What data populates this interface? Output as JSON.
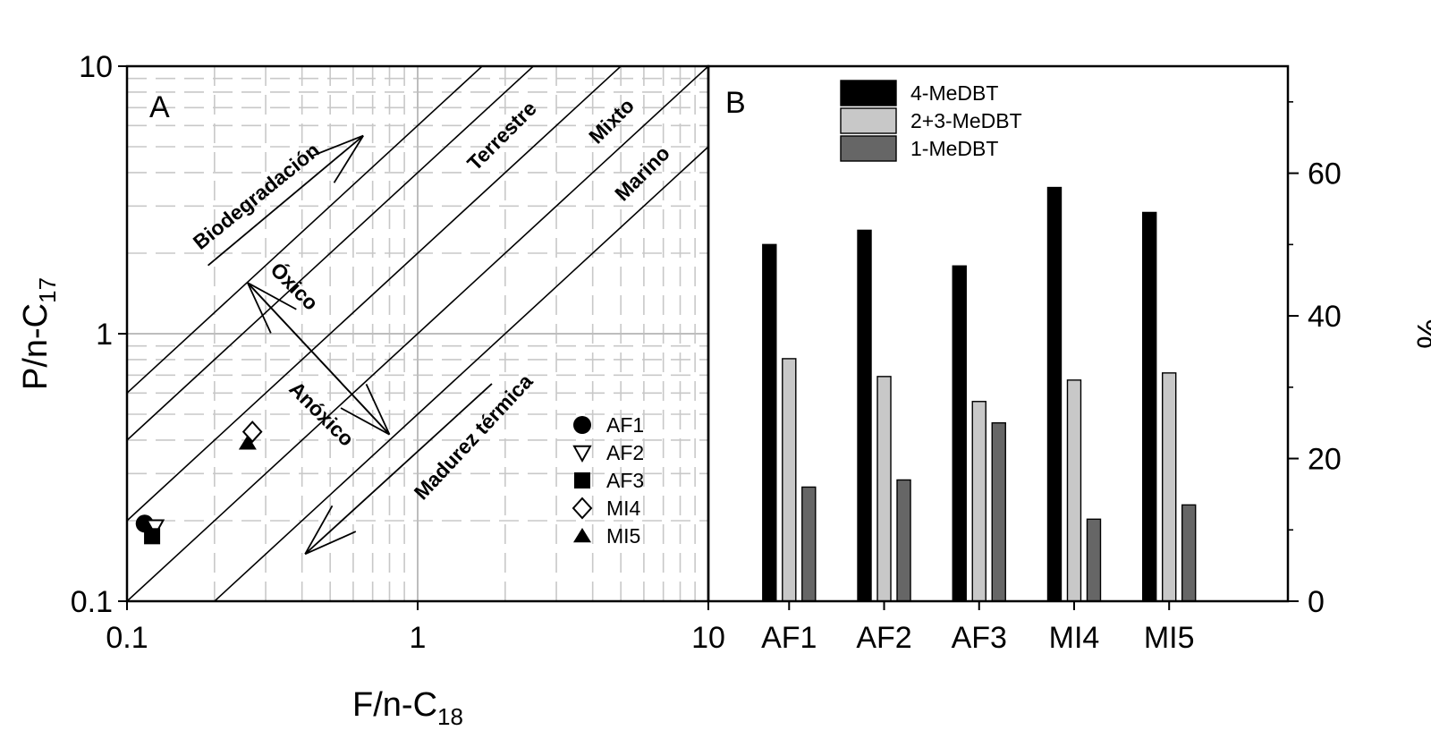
{
  "chart_data": [
    {
      "panel": "A",
      "type": "scatter",
      "xlabel": "F/n-C18",
      "ylabel": "P/n-C17",
      "xscale": "log",
      "yscale": "log",
      "xlim": [
        0.1,
        10
      ],
      "ylim": [
        0.1,
        10
      ],
      "grid": true,
      "legend_position": "bottom-right",
      "x_ticks": [
        "0.1",
        "1",
        "10"
      ],
      "y_ticks": [
        "0.1",
        "1",
        "10"
      ],
      "series": [
        {
          "name": "AF1",
          "marker": "filled-circle",
          "x": 0.115,
          "y": 0.195
        },
        {
          "name": "AF2",
          "marker": "open-triangle-down",
          "x": 0.125,
          "y": 0.19
        },
        {
          "name": "AF3",
          "marker": "filled-square",
          "x": 0.122,
          "y": 0.175
        },
        {
          "name": "MI4",
          "marker": "open-diamond",
          "x": 0.27,
          "y": 0.43
        },
        {
          "name": "MI5",
          "marker": "filled-triangle-up",
          "x": 0.26,
          "y": 0.39
        }
      ],
      "annotations": {
        "biodegradacion": "Biodegradación",
        "terrestre": "Terrestre",
        "mixto": "Mixto",
        "marino": "Marino",
        "oxico": "Óxico",
        "anoxico": "Anóxico",
        "madurez": "Madurez térmica"
      }
    },
    {
      "panel": "B",
      "type": "bar",
      "ylabel": "%",
      "y_axis_side": "right",
      "ylim": [
        0,
        75
      ],
      "y_ticks": [
        "0",
        "20",
        "40",
        "60"
      ],
      "grid": false,
      "legend_position": "top",
      "categories": [
        "AF1",
        "AF2",
        "AF3",
        "MI4",
        "MI5"
      ],
      "series": [
        {
          "name": "4-MeDBT",
          "color": "#000000",
          "values": [
            50,
            52,
            47,
            58,
            54.5
          ]
        },
        {
          "name": "2+3-MeDBT",
          "color": "#c8c8c8",
          "values": [
            34,
            31.5,
            28,
            31,
            32
          ]
        },
        {
          "name": "1-MeDBT",
          "color": "#666666",
          "values": [
            16,
            17,
            25,
            11.5,
            13.5
          ]
        }
      ]
    }
  ]
}
